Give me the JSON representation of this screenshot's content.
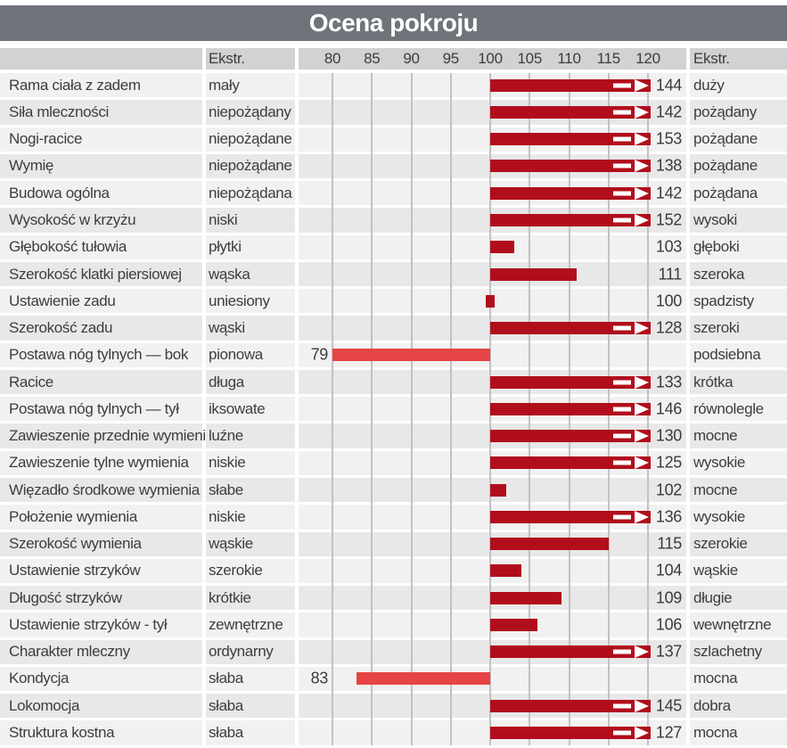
{
  "title": "Ocena pokroju",
  "header": {
    "ekstr_left": "Ekstr.",
    "ekstr_right": "Ekstr.",
    "ticks": [
      80,
      85,
      90,
      95,
      100,
      105,
      110,
      115,
      120
    ]
  },
  "chart_data": {
    "type": "bar",
    "title": "Ocena pokroju",
    "axis_range": [
      80,
      120
    ],
    "baseline": 100,
    "overflow_threshold": 120,
    "legend_position": "none",
    "grid": true,
    "colors": {
      "bar_above_baseline": "#b10e1c",
      "bar_below_baseline": "#e64444",
      "title_band": "#6e747a",
      "header_band": "#d2d2d4",
      "row_light": "#f1f1f1",
      "row_dark": "#e8e8e8",
      "gridline": "#c2c2c4"
    },
    "rows": [
      {
        "trait": "Rama ciała z zadem",
        "low": "mały",
        "high": "duży",
        "value": 144
      },
      {
        "trait": "Siła mleczności",
        "low": "niepożądany",
        "high": "pożądany",
        "value": 142
      },
      {
        "trait": "Nogi-racice",
        "low": "niepożądane",
        "high": "pożądane",
        "value": 153
      },
      {
        "trait": "Wymię",
        "low": "niepożądane",
        "high": "pożądane",
        "value": 138
      },
      {
        "trait": "Budowa ogólna",
        "low": "niepożądana",
        "high": "pożądana",
        "value": 142
      },
      {
        "trait": "Wysokość w krzyżu",
        "low": "niski",
        "high": "wysoki",
        "value": 152
      },
      {
        "trait": "Głębokość tułowia",
        "low": "płytki",
        "high": "głęboki",
        "value": 103
      },
      {
        "trait": "Szerokość klatki piersiowej",
        "low": "wąska",
        "high": "szeroka",
        "value": 111
      },
      {
        "trait": "Ustawienie zadu",
        "low": "uniesiony",
        "high": "spadzisty",
        "value": 100
      },
      {
        "trait": "Szerokość zadu",
        "low": "wąski",
        "high": "szeroki",
        "value": 128
      },
      {
        "trait": "Postawa nóg tylnych —  bok",
        "low": "pionowa",
        "high": "podsiebna",
        "value": 79
      },
      {
        "trait": "Racice",
        "low": "długa",
        "high": "krótka",
        "value": 133
      },
      {
        "trait": "Postawa nóg tylnych —  tył",
        "low": "iksowate",
        "high": "równolegle",
        "value": 146
      },
      {
        "trait": "Zawieszenie przednie wymienia",
        "low": "luźne",
        "high": "mocne",
        "value": 130
      },
      {
        "trait": "Zawieszenie tylne wymienia",
        "low": "niskie",
        "high": "wysokie",
        "value": 125
      },
      {
        "trait": "Więzadło środkowe wymienia",
        "low": "słabe",
        "high": "mocne",
        "value": 102
      },
      {
        "trait": "Położenie wymienia",
        "low": "niskie",
        "high": "wysokie",
        "value": 136
      },
      {
        "trait": "Szerokość wymienia",
        "low": "wąskie",
        "high": "szerokie",
        "value": 115
      },
      {
        "trait": "Ustawienie strzyków",
        "low": "szerokie",
        "high": "wąskie",
        "value": 104
      },
      {
        "trait": "Długość strzyków",
        "low": "krótkie",
        "high": "długie",
        "value": 109
      },
      {
        "trait": "Ustawienie strzyków - tył",
        "low": "zewnętrzne",
        "high": "wewnętrzne",
        "value": 106
      },
      {
        "trait": "Charakter mleczny",
        "low": "ordynarny",
        "high": "szlachetny",
        "value": 137
      },
      {
        "trait": "Kondycja",
        "low": "słaba",
        "high": "mocna",
        "value": 83
      },
      {
        "trait": "Lokomocja",
        "low": "słaba",
        "high": "dobra",
        "value": 145
      },
      {
        "trait": "Struktura kostna",
        "low": "słaba",
        "high": "mocna",
        "value": 127
      }
    ]
  }
}
